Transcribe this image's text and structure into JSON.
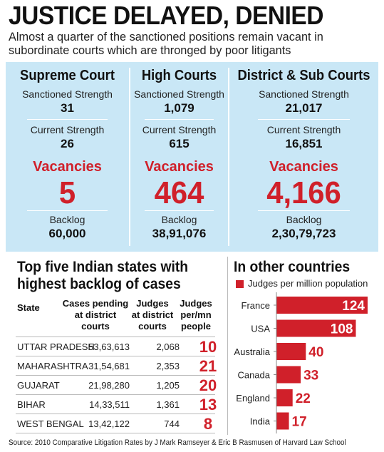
{
  "headline": "JUSTICE DELAYED, DENIED",
  "subheadline": "Almost a quarter of the sanctioned positions remain vacant in subordinate courts which are thronged by poor litigants",
  "courts": [
    {
      "name": "Supreme Court",
      "sanctioned_label": "Sanctioned Strength",
      "sanctioned": "31",
      "current_label": "Current Strength",
      "current": "26",
      "vacancies_label": "Vacancies",
      "vacancies": "5",
      "backlog_label": "Backlog",
      "backlog": "60,000"
    },
    {
      "name": "High Courts",
      "sanctioned_label": "Sanctioned Strength",
      "sanctioned": "1,079",
      "current_label": "Current Strength",
      "current": "615",
      "vacancies_label": "Vacancies",
      "vacancies": "464",
      "backlog_label": "Backlog",
      "backlog": "38,91,076"
    },
    {
      "name": "District & Sub Courts",
      "sanctioned_label": "Sanctioned Strength",
      "sanctioned": "21,017",
      "current_label": "Current Strength",
      "current": "16,851",
      "vacancies_label": "Vacancies",
      "vacancies": "4,166",
      "backlog_label": "Backlog",
      "backlog": "2,30,79,723"
    }
  ],
  "states_table": {
    "title_line1": "Top five Indian states with",
    "title_line2": "highest  backlog of cases",
    "col_state": "State",
    "col_pending": "Cases pending at district courts",
    "col_judges": "Judges at district courts",
    "col_permn": "Judges per/mn people",
    "rows": [
      {
        "state": "UTTAR PRADESH",
        "pending": "53,63,613",
        "judges": "2,068",
        "per_mn": "10"
      },
      {
        "state": "MAHARASHTRA",
        "pending": "31,54,681",
        "judges": "2,353",
        "per_mn": "21"
      },
      {
        "state": "GUJARAT",
        "pending": "21,98,280",
        "judges": "1,205",
        "per_mn": "20"
      },
      {
        "state": "BIHAR",
        "pending": "14,33,511",
        "judges": "1,361",
        "per_mn": "13"
      },
      {
        "state": "WEST BENGAL",
        "pending": "13,42,122",
        "judges": "744",
        "per_mn": "8"
      }
    ]
  },
  "other_countries_title": "In other countries",
  "chart_data": {
    "type": "bar",
    "orientation": "horizontal",
    "legend": "Judges per million population",
    "legend_position": "top-left",
    "bar_color": "#d0202a",
    "categories": [
      "France",
      "USA",
      "Australia",
      "Canada",
      "England",
      "India"
    ],
    "values": [
      124,
      108,
      40,
      33,
      22,
      17
    ],
    "xlim": [
      0,
      124
    ],
    "grid": false
  },
  "source": "Source: 2010 Comparative Litigation Rates by J Mark Ramseyer & Eric B Rasmusen of Harvard Law School",
  "colors": {
    "panel_bg": "#c9e7f6",
    "accent_red": "#d0202a"
  }
}
